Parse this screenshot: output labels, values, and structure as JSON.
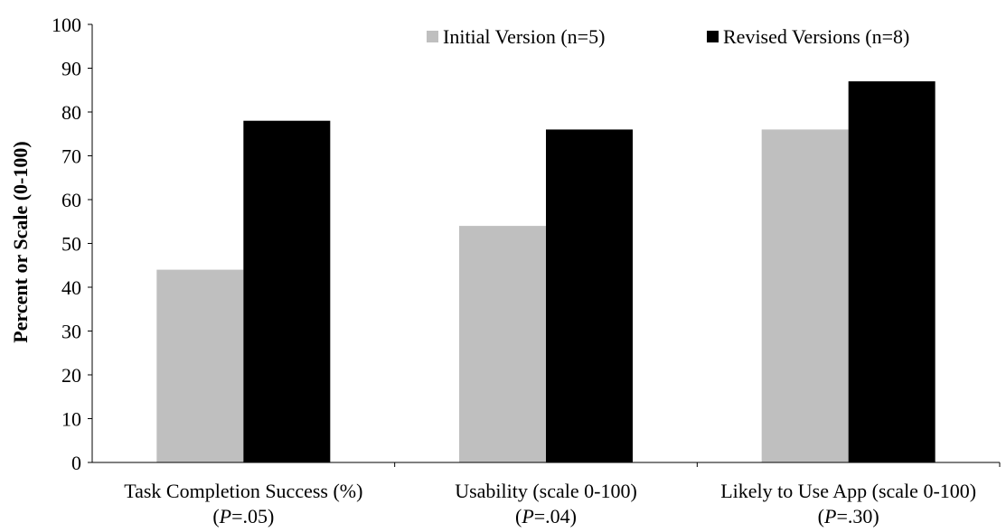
{
  "chart_data": {
    "type": "bar",
    "title": "",
    "xlabel": "",
    "ylabel": "Percent or Scale (0-100)",
    "ylim": [
      0,
      100
    ],
    "yticks": [
      0,
      10,
      20,
      30,
      40,
      50,
      60,
      70,
      80,
      90,
      100
    ],
    "grid": false,
    "legend_position": "top-right",
    "categories": [
      {
        "label": "Task Completion Success (%)",
        "p_prefix": "P",
        "p_value": "=.05"
      },
      {
        "label": "Usability (scale 0-100)",
        "p_prefix": "P",
        "p_value": "=.04"
      },
      {
        "label": "Likely to Use App (scale 0-100)",
        "p_prefix": "P",
        "p_value": "=.30"
      }
    ],
    "series": [
      {
        "name": "Initial Version (n=5)",
        "color": "#bfbfbf",
        "values": [
          44,
          54,
          76
        ]
      },
      {
        "name": "Revised Versions (n=8)",
        "color": "#000000",
        "values": [
          78,
          76,
          87
        ]
      }
    ]
  }
}
